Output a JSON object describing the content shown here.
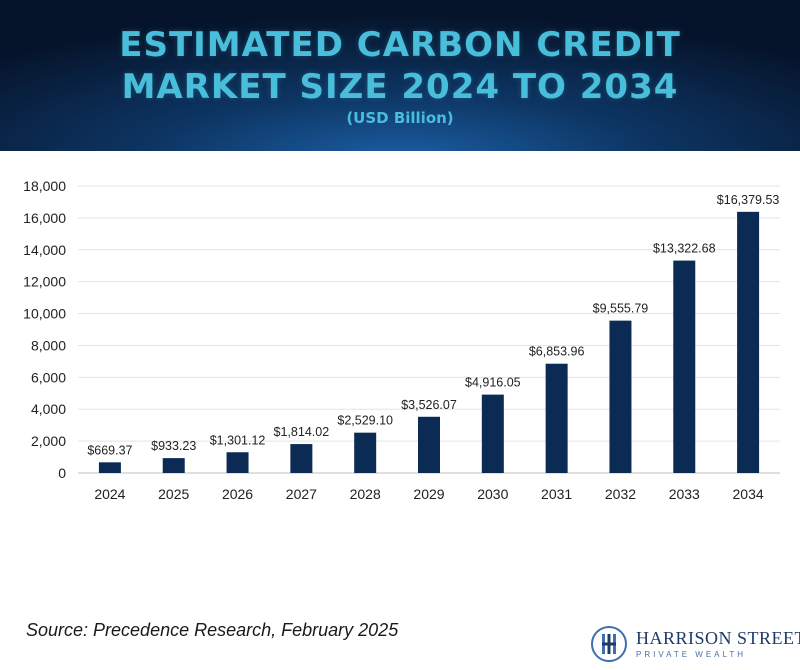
{
  "header": {
    "title_line1": "ESTIMATED CARBON CREDIT",
    "title_line2": "MARKET SIZE 2024 TO 2034",
    "subtitle": "(USD Billion)"
  },
  "source": "Source: Precedence Research, February 2025",
  "logo": {
    "name": "HARRISON STREET",
    "tagline": "PRIVATE WEALTH"
  },
  "colors": {
    "bar": "#0b2b54",
    "title": "#49bedb",
    "header_bg": "#0d3563"
  },
  "chart_data": {
    "type": "bar",
    "title": "ESTIMATED CARBON CREDIT MARKET SIZE 2024 TO 2034",
    "subtitle": "(USD Billion)",
    "categories": [
      "2024",
      "2025",
      "2026",
      "2027",
      "2028",
      "2029",
      "2030",
      "2031",
      "2032",
      "2033",
      "2034"
    ],
    "values": [
      669.37,
      933.23,
      1301.12,
      1814.02,
      2529.1,
      3526.07,
      4916.05,
      6853.96,
      9555.79,
      13322.68,
      16379.53
    ],
    "data_labels": [
      "$669.37",
      "$933.23",
      "$1,301.12",
      "$1,814.02",
      "$2,529.10",
      "$3,526.07",
      "$4,916.05",
      "$6,853.96",
      "$9,555.79",
      "$13,322.68",
      "$16,379.53"
    ],
    "ylim": [
      0,
      18000
    ],
    "yticks": [
      0,
      2000,
      4000,
      6000,
      8000,
      10000,
      12000,
      14000,
      16000,
      18000
    ],
    "ytick_labels": [
      "0",
      "2,000",
      "4,000",
      "6,000",
      "8,000",
      "10,000",
      "12,000",
      "14,000",
      "16,000",
      "18,000"
    ],
    "xlabel": "",
    "ylabel": "",
    "grid": true,
    "legend": false
  }
}
